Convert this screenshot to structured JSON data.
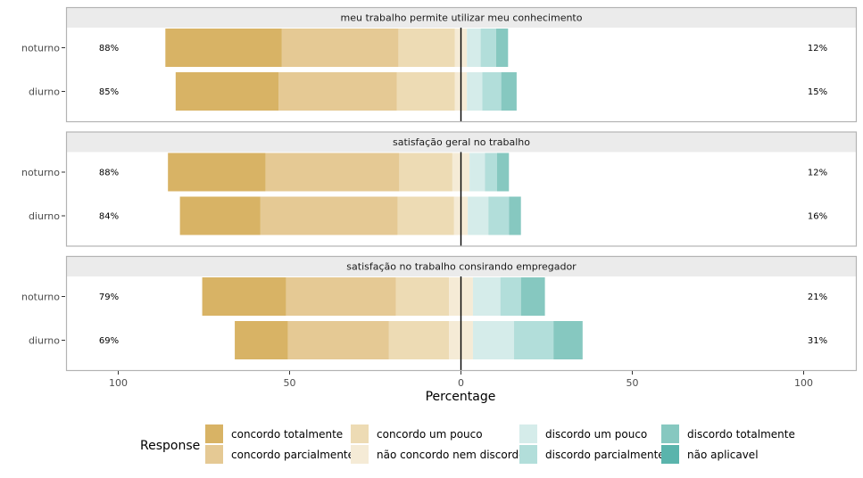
{
  "chart_data": {
    "type": "bar",
    "orientation": "horizontal-diverging",
    "xlabel": "Percentage",
    "x_ticks": [
      -100,
      -50,
      0,
      50,
      100
    ],
    "x_tick_labels": [
      "100",
      "50",
      "0",
      "50",
      "100"
    ],
    "xlim": [
      -100,
      100
    ],
    "legend": {
      "title": "Response",
      "placement": "bottom",
      "entries": [
        {
          "label": "concordo totalmente",
          "color": "#D8B365"
        },
        {
          "label": "concordo parcialmente",
          "color": "#E5C994"
        },
        {
          "label": "concordo um pouco",
          "color": "#EDDBB4"
        },
        {
          "label": "não concordo nem discordo",
          "color": "#F5EBD6"
        },
        {
          "label": "discordo um pouco",
          "color": "#D5ECEA"
        },
        {
          "label": "discordo parcialmente",
          "color": "#B2DEDA"
        },
        {
          "label": "discordo totalmente",
          "color": "#86C8C0"
        },
        {
          "label": "não aplicavel",
          "color": "#5AB4AC"
        }
      ]
    },
    "panels": [
      {
        "title": "meu trabalho permite utilizar meu conhecimento",
        "rows": [
          {
            "label": "noturno",
            "left_pct": "88%",
            "right_pct": "12%",
            "values": [
              34,
              34,
              16.5,
              3.5,
              4,
              4.5,
              3.5,
              0
            ]
          },
          {
            "label": "diurno",
            "left_pct": "85%",
            "right_pct": "15%",
            "values": [
              30,
              34.5,
              17,
              3.5,
              4.5,
              5.5,
              4.5,
              0
            ]
          }
        ]
      },
      {
        "title": "satisfação geral no trabalho",
        "rows": [
          {
            "label": "noturno",
            "left_pct": "88%",
            "right_pct": "12%",
            "values": [
              28.5,
              39,
              15.5,
              5,
              4.5,
              3.5,
              3.5,
              0
            ]
          },
          {
            "label": "diurno",
            "left_pct": "84%",
            "right_pct": "16%",
            "values": [
              23.5,
              40,
              16.5,
              4,
              6,
              6,
              3.5,
              0
            ]
          }
        ]
      },
      {
        "title": "satisfação no trabalho consirando empregador",
        "rows": [
          {
            "label": "noturno",
            "left_pct": "79%",
            "right_pct": "21%",
            "values": [
              24.5,
              32,
              15.5,
              7,
              8,
              6,
              7,
              0
            ]
          },
          {
            "label": "diurno",
            "left_pct": "69%",
            "right_pct": "31%",
            "values": [
              15.5,
              29.5,
              17.5,
              7,
              12,
              11.5,
              8.5,
              0
            ]
          }
        ]
      }
    ]
  }
}
